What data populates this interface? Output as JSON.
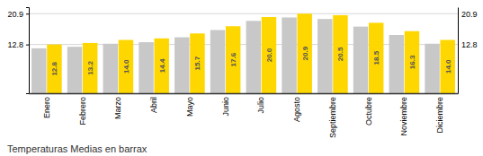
{
  "chart_data": {
    "type": "bar",
    "title": "Temperaturas Medias en barrax",
    "categories": [
      "Enero",
      "Febrero",
      "Marzo",
      "Abril",
      "Mayo",
      "Junio",
      "Julio",
      "Agosto",
      "Septiembre",
      "Octubre",
      "Noviembre",
      "Diciembre"
    ],
    "series": [
      {
        "color": "#C8C8C8",
        "values": [
          11.8,
          12.2,
          13.0,
          13.4,
          14.7,
          16.6,
          19.0,
          19.9,
          19.5,
          17.5,
          15.3,
          13.0
        ]
      },
      {
        "color": "#FFD700",
        "values": [
          12.8,
          13.2,
          14.0,
          14.4,
          15.7,
          17.6,
          20.0,
          20.9,
          20.5,
          18.5,
          16.3,
          14.0
        ],
        "value_labels": [
          "12.8",
          "13.2",
          "14.0",
          "14.4",
          "15.7",
          "17.6",
          "20.0",
          "20.9",
          "20.5",
          "18.5",
          "16.3",
          "14.0"
        ],
        "data_labels": true
      }
    ],
    "ylim": [
      0,
      22.6
    ],
    "yticks": [
      12.8,
      20.9
    ],
    "grid": true
  }
}
